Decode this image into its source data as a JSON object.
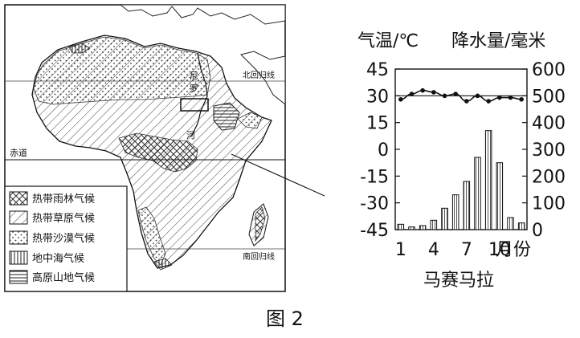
{
  "figure_caption": "图 2",
  "map": {
    "equator_label": "赤道",
    "tropic_cancer_label": "北回归线",
    "tropic_capricorn_label": "南回归线",
    "river_labels": [
      "尼",
      "罗",
      "河"
    ],
    "legend": [
      {
        "label": "热带雨林气候",
        "pattern": "crosshatch"
      },
      {
        "label": "热带草原气候",
        "pattern": "diagonal"
      },
      {
        "label": "热带沙漠气候",
        "pattern": "dots"
      },
      {
        "label": "地中海气候",
        "pattern": "vertical"
      },
      {
        "label": "高原山地气候",
        "pattern": "horizontal"
      }
    ]
  },
  "climate_chart": {
    "station": "马赛马拉",
    "left_axis_label": "气温/℃",
    "right_axis_label": "降水量/毫米",
    "x_unit_label": "月份",
    "chart_data": {
      "type": "bar+line",
      "months": [
        1,
        2,
        3,
        4,
        5,
        6,
        7,
        8,
        9,
        10,
        11,
        12
      ],
      "x_tick_labels": [
        "1",
        "4",
        "7",
        "10"
      ],
      "x_tick_months": [
        1,
        4,
        7,
        10
      ],
      "temperature": {
        "axis": "left",
        "ylim": [
          -45,
          45
        ],
        "ticks": [
          45,
          30,
          15,
          0,
          -15,
          -30,
          -45
        ],
        "values": [
          28,
          31,
          33,
          32,
          30,
          31,
          27,
          30,
          27,
          29,
          29,
          28
        ]
      },
      "precipitation": {
        "axis": "right",
        "ylim": [
          0,
          600
        ],
        "ticks": [
          600,
          500,
          400,
          300,
          200,
          100,
          0
        ],
        "values": [
          20,
          10,
          15,
          35,
          80,
          130,
          180,
          270,
          370,
          250,
          45,
          25
        ]
      }
    }
  }
}
